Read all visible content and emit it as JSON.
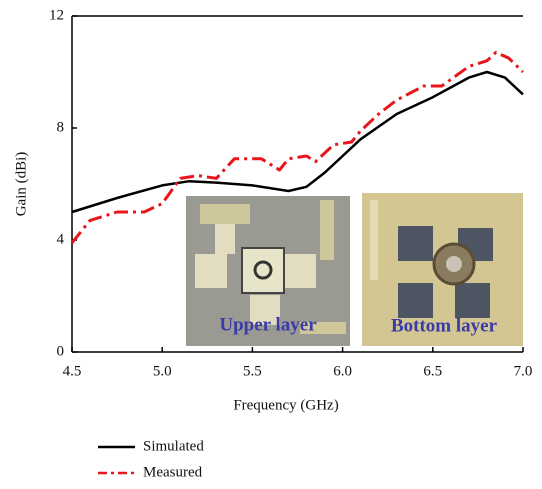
{
  "chart_data": {
    "type": "line",
    "x_label": "Frequency (GHz)",
    "y_label": "Gain (dBi)",
    "xlim": [
      4.5,
      7.0
    ],
    "ylim": [
      0,
      12
    ],
    "xticks": [
      {
        "value": 4.5,
        "label": "4.5"
      },
      {
        "value": 5.0,
        "label": "5.0"
      },
      {
        "value": 5.5,
        "label": "5.5"
      },
      {
        "value": 6.0,
        "label": "6.0"
      },
      {
        "value": 6.5,
        "label": "6.5"
      },
      {
        "value": 7.0,
        "label": "7.0"
      }
    ],
    "yticks": [
      0,
      4,
      8,
      12
    ],
    "annotations": [
      "Upper layer",
      "Bottom layer"
    ],
    "series": [
      {
        "name": "Simulated",
        "color": "#000000",
        "style": "solid",
        "x": [
          4.5,
          4.75,
          5.0,
          5.15,
          5.3,
          5.5,
          5.7,
          5.8,
          5.9,
          6.0,
          6.1,
          6.3,
          6.5,
          6.7,
          6.8,
          6.9,
          7.0
        ],
        "values": [
          5.0,
          5.5,
          5.95,
          6.1,
          6.05,
          5.95,
          5.75,
          5.9,
          6.4,
          7.0,
          7.6,
          8.5,
          9.1,
          9.8,
          10.0,
          9.8,
          9.2
        ]
      },
      {
        "name": "Measured",
        "color": "#e8161b",
        "style": "dashdot",
        "x": [
          4.5,
          4.6,
          4.75,
          4.9,
          5.0,
          5.1,
          5.2,
          5.3,
          5.4,
          5.55,
          5.65,
          5.7,
          5.8,
          5.85,
          5.95,
          6.05,
          6.1,
          6.2,
          6.3,
          6.45,
          6.55,
          6.7,
          6.8,
          6.85,
          6.92,
          7.0
        ],
        "values": [
          3.9,
          4.7,
          5.0,
          5.0,
          5.3,
          6.2,
          6.3,
          6.2,
          6.9,
          6.9,
          6.5,
          6.9,
          7.0,
          6.8,
          7.4,
          7.5,
          7.9,
          8.5,
          9.0,
          9.5,
          9.5,
          10.2,
          10.4,
          10.7,
          10.5,
          10.0
        ]
      }
    ]
  }
}
